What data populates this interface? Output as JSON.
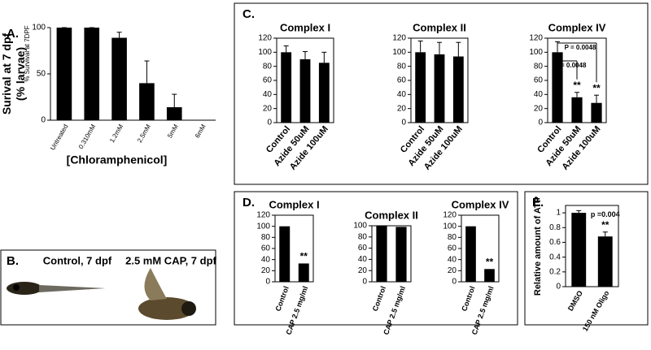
{
  "panel_labels": [
    "A.",
    "B.",
    "C.",
    "D.",
    "E."
  ],
  "image_panel": {
    "captions": [
      "Control, 7 dpf",
      "2.5 mM CAP, 7 dpf"
    ]
  },
  "chart_data": [
    {
      "type": "bar",
      "ylabel": [
        "Surival at 7 dpf",
        "(% larvae)"
      ],
      "ylabel_overlay": "% Survival at 7DPF",
      "xlabel": "[Chloramphenicol]",
      "categories": [
        "Untreated",
        "0.310mM",
        "1.2mM",
        "2.5mM",
        "5mM",
        "6mM"
      ],
      "values": [
        100,
        100,
        89,
        40,
        14,
        0
      ],
      "errors": [
        0,
        0,
        6,
        24,
        14,
        0
      ],
      "color": "#000000",
      "ylim": [
        0,
        100
      ],
      "yticks": [
        0,
        50,
        100
      ],
      "frame": false
    },
    {
      "type": "bar",
      "title": "Complex I",
      "categories": [
        "Control",
        "Azide 50uM",
        "Azide 100uM"
      ],
      "values": [
        100,
        90,
        85
      ],
      "errors": [
        9,
        11,
        15
      ],
      "color": "#000000",
      "ylim": [
        0,
        120
      ],
      "yticks": [
        0,
        20,
        40,
        60,
        80,
        100,
        120
      ],
      "frame": true
    },
    {
      "type": "bar",
      "title": "Complex II",
      "categories": [
        "Control",
        "Azide 50uM",
        "Azide 100uM"
      ],
      "values": [
        100,
        97,
        94
      ],
      "errors": [
        16,
        17,
        20
      ],
      "color": "#000000",
      "ylim": [
        0,
        120
      ],
      "yticks": [
        0,
        20,
        40,
        60,
        80,
        100,
        120
      ],
      "frame": true
    },
    {
      "type": "bar",
      "title": "Complex IV",
      "categories": [
        "Control",
        "Azide 50uM",
        "Azide 100uM"
      ],
      "values": [
        100,
        36,
        28
      ],
      "errors": [
        15,
        7,
        11
      ],
      "color": "#000000",
      "ylim": [
        0,
        120
      ],
      "yticks": [
        0,
        20,
        40,
        60,
        80,
        100,
        120
      ],
      "frame": true,
      "annotations": [
        {
          "text": "**",
          "category": "Azide 50uM"
        },
        {
          "text": "**",
          "category": "Azide 100uM"
        }
      ],
      "brackets": [
        {
          "label": "P = 0.0048",
          "from": "Control",
          "to": "Azide 100uM"
        },
        {
          "label": "P = 0.0048",
          "from": "Control",
          "to": "Azide 50uM"
        }
      ]
    },
    {
      "type": "bar",
      "title": "Complex I",
      "categories": [
        "Control",
        "CAP 2.5 mg/ml"
      ],
      "values": [
        100,
        33
      ],
      "color": "#000000",
      "ylim": [
        0,
        120
      ],
      "yticks": [
        0,
        20,
        40,
        60,
        80,
        100,
        120
      ],
      "frame": true,
      "annotations": [
        {
          "text": "**",
          "category": "CAP 2.5 mg/ml"
        }
      ]
    },
    {
      "type": "bar",
      "title": "Complex II",
      "categories": [
        "Control",
        "CAP 2.5 mg/ml"
      ],
      "values": [
        100,
        98
      ],
      "color": "#000000",
      "ylim": [
        0,
        100
      ],
      "yticks": [
        0,
        20,
        40,
        60,
        80,
        100
      ],
      "frame": true
    },
    {
      "type": "bar",
      "title": "Complex IV",
      "categories": [
        "Control",
        "CAP 2.5 mg/ml"
      ],
      "values": [
        100,
        23
      ],
      "color": "#000000",
      "ylim": [
        0,
        120
      ],
      "yticks": [
        0,
        20,
        40,
        60,
        80,
        100,
        120
      ],
      "frame": true,
      "annotations": [
        {
          "text": "**",
          "category": "CAP 2.5 mg/ml"
        }
      ]
    },
    {
      "type": "bar",
      "ylabel": [
        "Relative amount of ATP"
      ],
      "categories": [
        "DMSO",
        "150 nM Oligo"
      ],
      "values": [
        1.0,
        0.68
      ],
      "errors": [
        0.03,
        0.06
      ],
      "color": "#000000",
      "ylim": [
        0,
        1.1
      ],
      "yticks": [
        0,
        0.2,
        0.4,
        0.6,
        0.8,
        1
      ],
      "frame": true,
      "annotations": [
        {
          "text": "**",
          "category": "150 nM Oligo"
        },
        {
          "text": "p =0.004",
          "category": "150 nM Oligo"
        }
      ]
    }
  ]
}
